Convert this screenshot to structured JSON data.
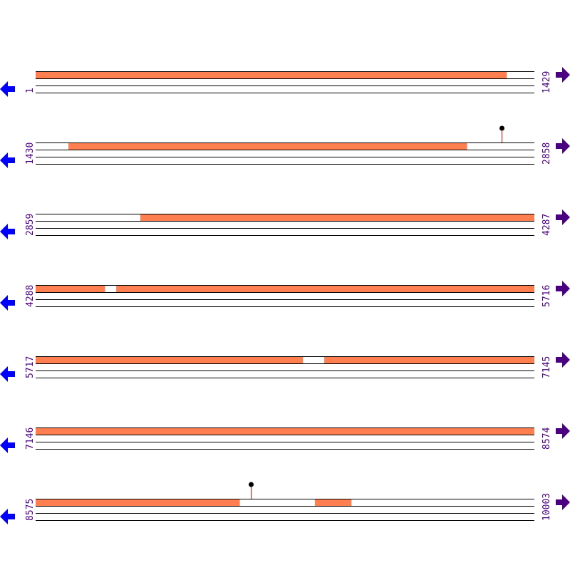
{
  "colors": {
    "feature": "#ff7f50",
    "line": "#000000",
    "label": "#4b0082",
    "left_arrow": "#0000ff",
    "right_arrow": "#4b0082",
    "marker_stem": "#ff0000",
    "marker_head": "#000000"
  },
  "icons": {
    "left": "arrow-left-icon",
    "right": "arrow-right-icon"
  },
  "rows": [
    {
      "start": "1",
      "end": "1429",
      "features": [
        [
          1,
          1350
        ]
      ],
      "markers": []
    },
    {
      "start": "1430",
      "end": "2858",
      "features": [
        [
          1524,
          2665
        ]
      ],
      "markers": [
        2765
      ]
    },
    {
      "start": "2859",
      "end": "4287",
      "features": [
        [
          3159,
          4287
        ]
      ],
      "markers": []
    },
    {
      "start": "4288",
      "end": "5716",
      "features": [
        [
          4288,
          4486
        ],
        [
          4519,
          5716
        ]
      ],
      "markers": []
    },
    {
      "start": "5717",
      "end": "7145",
      "features": [
        [
          5717,
          6482
        ],
        [
          6544,
          7145
        ]
      ],
      "markers": []
    },
    {
      "start": "7146",
      "end": "8574",
      "features": [
        [
          7146,
          8574
        ]
      ],
      "markers": []
    },
    {
      "start": "8575",
      "end": "10003",
      "features": [
        [
          8575,
          9159
        ],
        [
          9375,
          9479
        ]
      ],
      "markers": [
        9191
      ]
    }
  ]
}
